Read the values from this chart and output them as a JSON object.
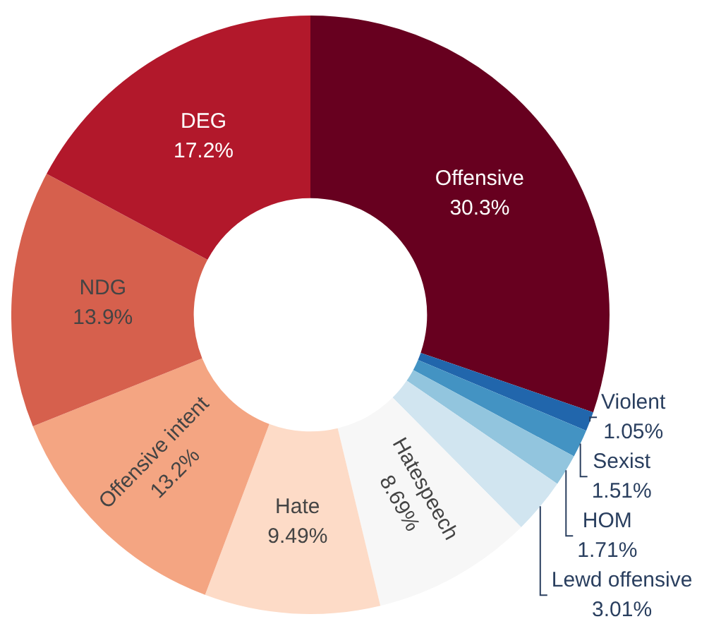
{
  "chart_data": {
    "type": "donut",
    "categories": [
      "Offensive",
      "Violent",
      "Sexist",
      "HOM",
      "Lewd offensive",
      "Hatespeech",
      "Hate",
      "Offensive intent",
      "NDG",
      "DEG"
    ],
    "values": [
      30.3,
      1.05,
      1.51,
      1.71,
      3.01,
      8.69,
      9.49,
      13.2,
      13.9,
      17.2
    ],
    "value_labels": [
      "30.3%",
      "1.05%",
      "1.51%",
      "1.71%",
      "3.01%",
      "8.69%",
      "9.49%",
      "13.2%",
      "13.9%",
      "17.2%"
    ],
    "colors": [
      "#67001f",
      "#2166ac",
      "#4393c3",
      "#92c5de",
      "#d1e5f0",
      "#f7f7f7",
      "#fddbc7",
      "#f4a582",
      "#d6604d",
      "#b2182b"
    ],
    "legend": false
  }
}
